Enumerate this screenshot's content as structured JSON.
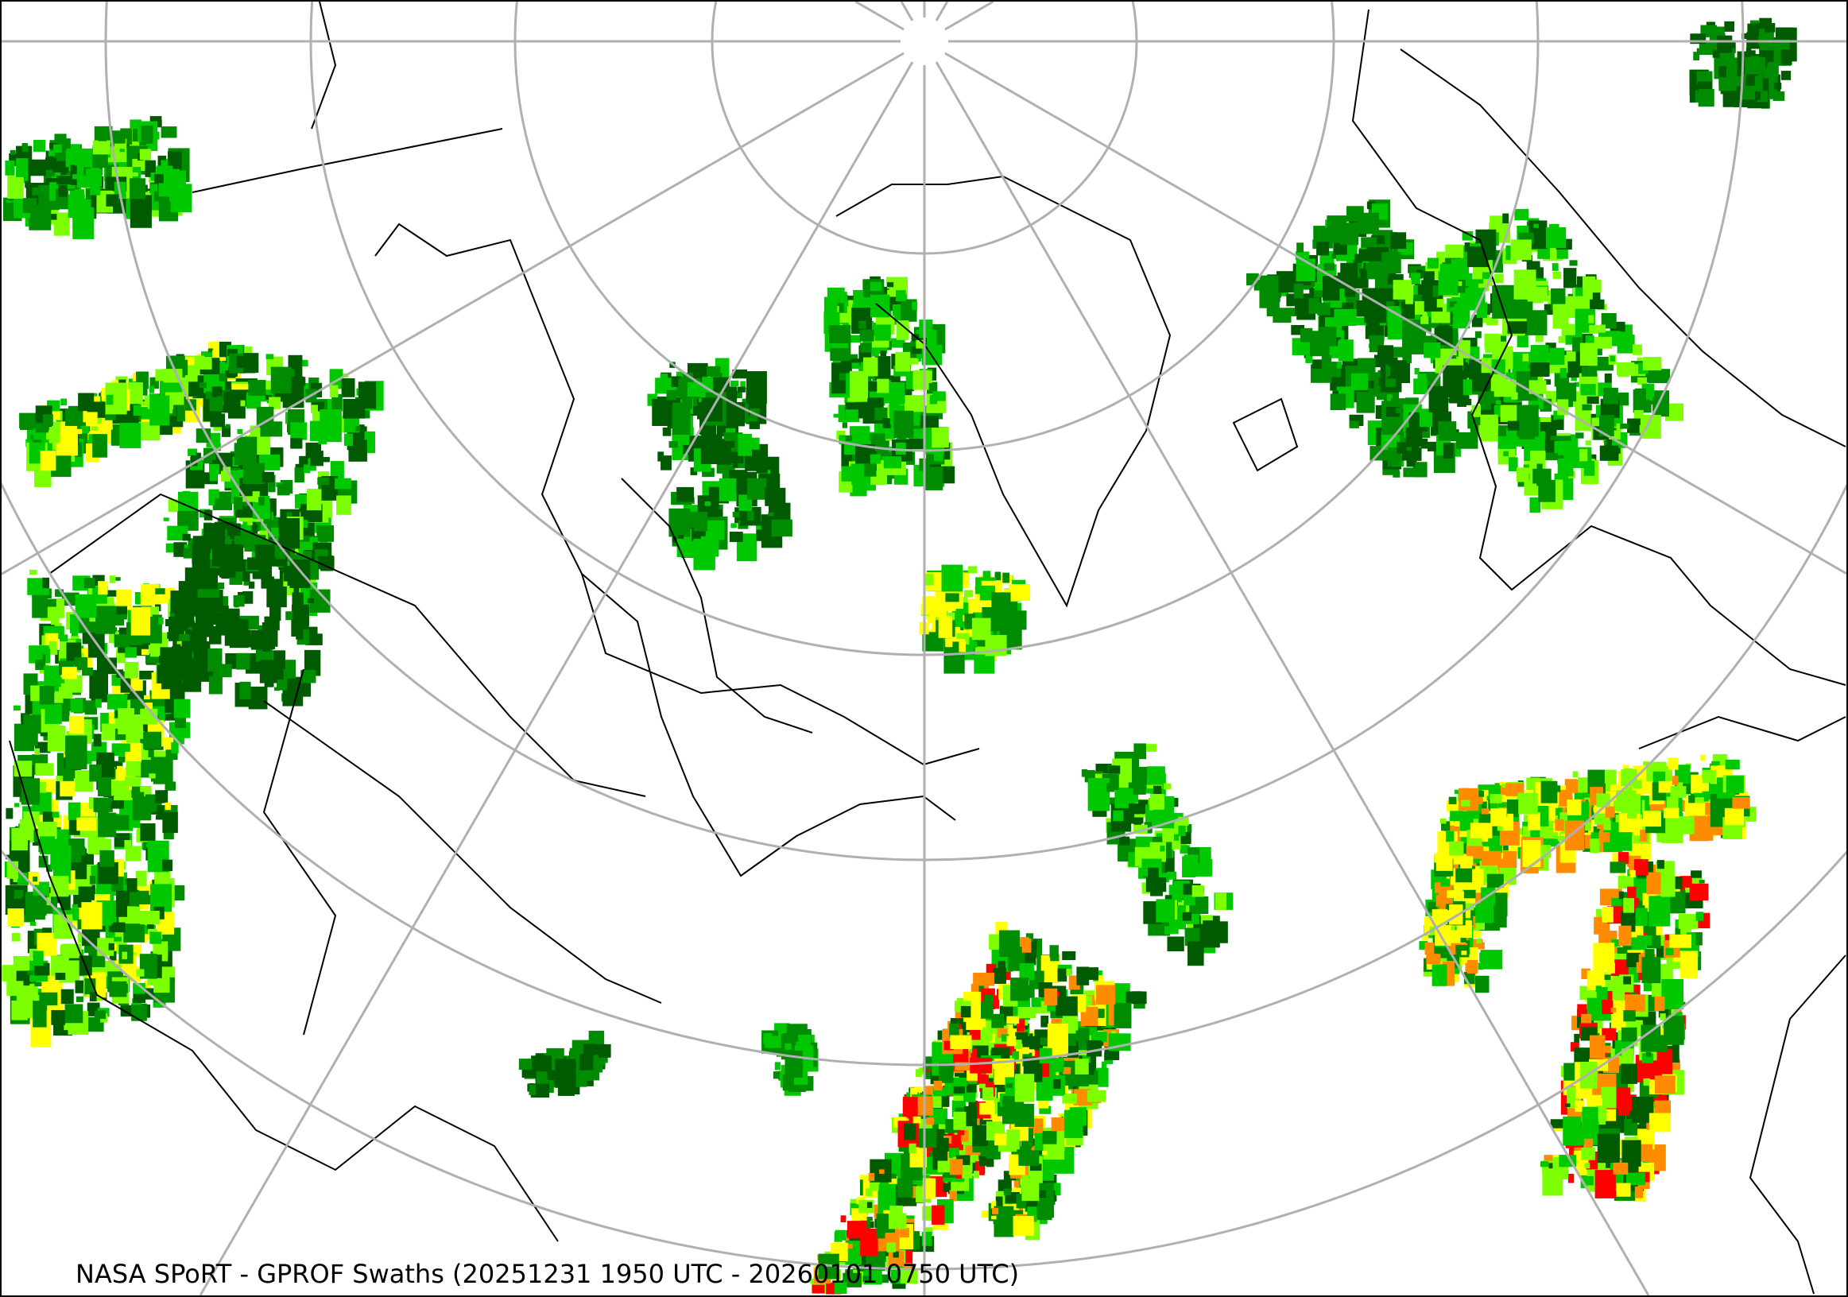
{
  "map": {
    "caption": "NASA SPoRT - GPROF Swaths (20251231 1950 UTC - 20260101 0750 UTC)",
    "projection": "polar stereographic (north)",
    "graticule_color": "#b0b0b0",
    "coastline_color": "#000000",
    "precip_colors": [
      "#005a00",
      "#008c00",
      "#00c800",
      "#7cff00",
      "#ffff00",
      "#ff8c00",
      "#ff0000"
    ],
    "layers": [
      "precipitation-swaths",
      "coastlines",
      "state-borders",
      "graticule"
    ]
  }
}
